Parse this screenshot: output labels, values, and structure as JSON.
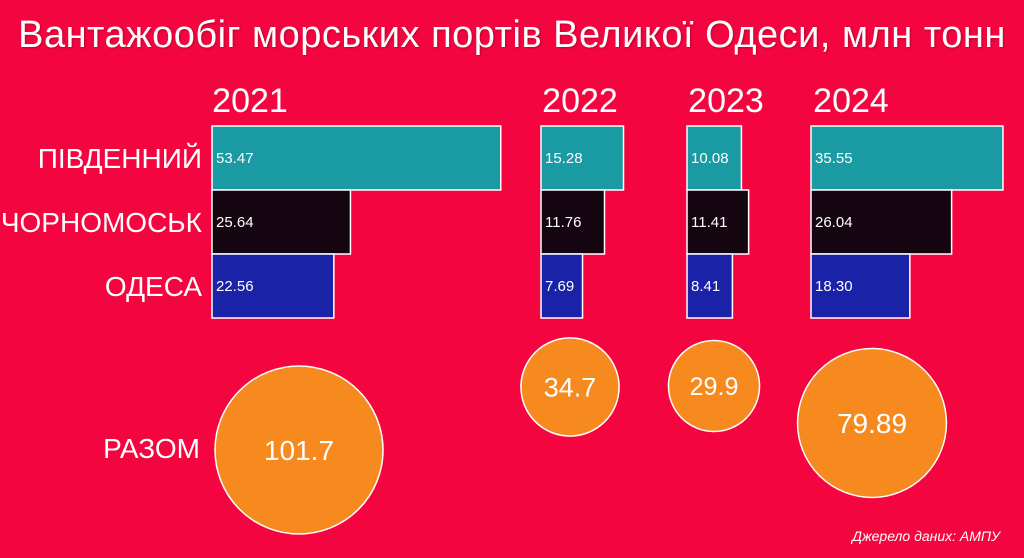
{
  "title": "Вантажообіг морських портів Великої Одеси, млн тонн",
  "source": "Джерело даних: АМПУ",
  "chart_data": {
    "type": "bar",
    "orientation": "horizontal",
    "title": "Вантажообіг морських портів Великої Одеси, млн тонн",
    "years": [
      "2021",
      "2022",
      "2023",
      "2024"
    ],
    "series": [
      {
        "name": "ПІВДЕННИЙ",
        "color": "#1a9aa3",
        "values": [
          53.47,
          15.28,
          10.08,
          35.55
        ],
        "labels": [
          "53.47",
          "15.28",
          "10.08",
          "35.55"
        ]
      },
      {
        "name": "ЧОРНОМОСЬК",
        "color": "#140510",
        "values": [
          25.64,
          11.76,
          11.41,
          26.04
        ],
        "labels": [
          "25.64",
          "11.76",
          "11.41",
          "26.04"
        ]
      },
      {
        "name": "ОДЕСА",
        "color": "#1a23a8",
        "values": [
          22.56,
          7.69,
          8.41,
          18.3
        ],
        "labels": [
          "22.56",
          "7.69",
          "8.41",
          "18.30"
        ]
      }
    ],
    "totals_label": "РАЗОМ",
    "totals": [
      101.7,
      34.7,
      29.9,
      79.89
    ],
    "totals_labels": [
      "101.7",
      "34.7",
      "29.9",
      "79.89"
    ],
    "total_color": "#f78a1f"
  }
}
